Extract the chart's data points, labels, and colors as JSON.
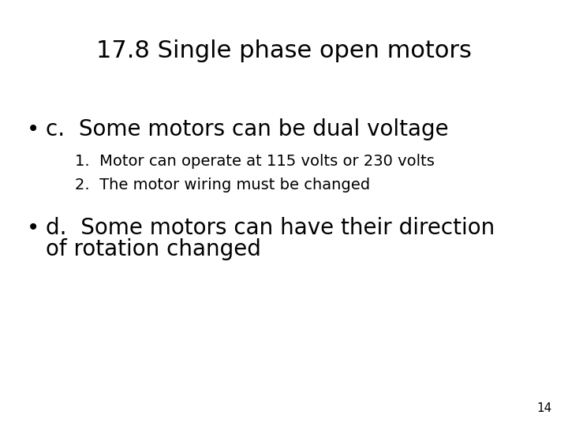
{
  "title": "17.8 Single phase open motors",
  "title_fontsize": 22,
  "background_color": "#ffffff",
  "text_color": "#000000",
  "bullet_c": "c.  Some motors can be dual voltage",
  "bullet_c_fontsize": 20,
  "sub1": "1.  Motor can operate at 115 volts or 230 volts",
  "sub1_fontsize": 14,
  "sub2": "2.  The motor wiring must be changed",
  "sub2_fontsize": 14,
  "bullet_d_line1": "d.  Some motors can have their direction",
  "bullet_d_line2": "of rotation changed",
  "bullet_d_fontsize": 20,
  "page_num": "14",
  "page_num_fontsize": 11
}
